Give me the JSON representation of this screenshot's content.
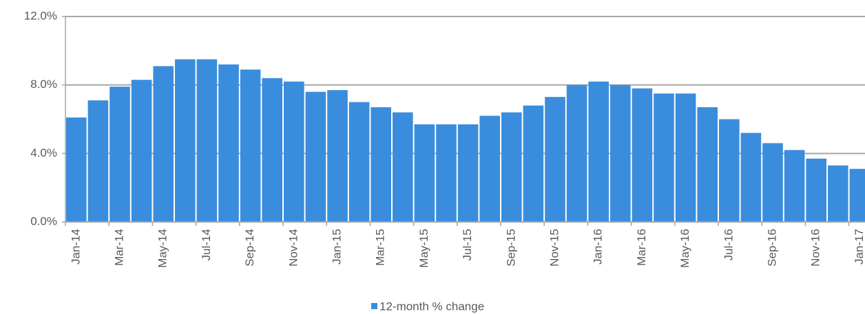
{
  "chart_data": {
    "type": "bar",
    "categories": [
      "Jan-14",
      null,
      "Mar-14",
      null,
      "May-14",
      null,
      "Jul-14",
      null,
      "Sep-14",
      null,
      "Nov-14",
      null,
      "Jan-15",
      null,
      "Mar-15",
      null,
      "May-15",
      null,
      "Jul-15",
      null,
      "Sep-15",
      null,
      "Nov-15",
      null,
      "Jan-16",
      null,
      "Mar-16",
      null,
      "May-16",
      null,
      "Jul-16",
      null,
      "Sep-16",
      null,
      "Nov-16",
      null,
      "Jan-17"
    ],
    "series": [
      {
        "name": "12-month % change",
        "color": "#3a8ddd",
        "values": [
          6.1,
          7.1,
          7.9,
          8.3,
          9.1,
          9.5,
          9.5,
          9.2,
          8.9,
          8.4,
          8.2,
          7.6,
          7.7,
          7.0,
          6.7,
          6.4,
          5.7,
          5.7,
          5.7,
          6.2,
          6.4,
          6.8,
          7.3,
          8.0,
          8.2,
          8.0,
          7.8,
          7.5,
          7.5,
          6.7,
          6.0,
          5.2,
          4.6,
          4.2,
          3.7,
          3.3,
          3.1
        ]
      }
    ],
    "ylim": [
      0,
      12
    ],
    "yticks": [
      {
        "value": 0,
        "label": "0.0%"
      },
      {
        "value": 4,
        "label": "4.0%"
      },
      {
        "value": 8,
        "label": "8.0%"
      },
      {
        "value": 12,
        "label": "12.0%"
      }
    ],
    "grid": true,
    "legend": "bottom"
  }
}
